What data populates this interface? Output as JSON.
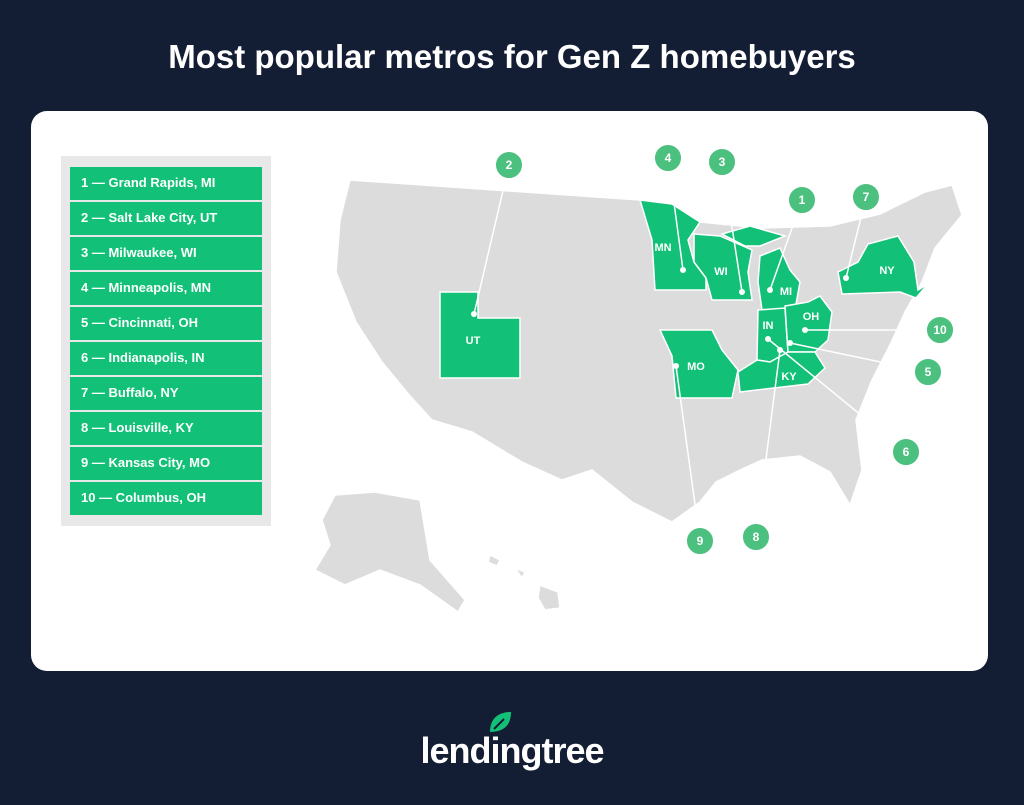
{
  "title": "Most popular metros for Gen Z homebuyers",
  "legend": [
    "1 — Grand Rapids, MI",
    "2 — Salt Lake City, UT",
    "3 — Milwaukee, WI",
    "4 — Minneapolis, MN",
    "5 — Cincinnati, OH",
    "6 — Indianapolis, IN",
    "7 — Buffalo, NY",
    "8 — Louisville, KY",
    "9 — Kansas City, MO",
    "10 — Columbus, OH"
  ],
  "states": {
    "MN": "MN",
    "WI": "WI",
    "MI": "MI",
    "UT": "UT",
    "MO": "MO",
    "IN": "IN",
    "OH": "OH",
    "KY": "KY",
    "NY": "NY"
  },
  "callouts": {
    "c1": "1",
    "c2": "2",
    "c3": "3",
    "c4": "4",
    "c5": "5",
    "c6": "6",
    "c7": "7",
    "c8": "8",
    "c9": "9",
    "c10": "10"
  },
  "logo": {
    "text": "lendingtree",
    "icon": "leaf-icon"
  },
  "colors": {
    "highlight": "#12c177",
    "callout": "#4cc07e",
    "map_base": "#dcdcdc",
    "background": "#131d33"
  }
}
